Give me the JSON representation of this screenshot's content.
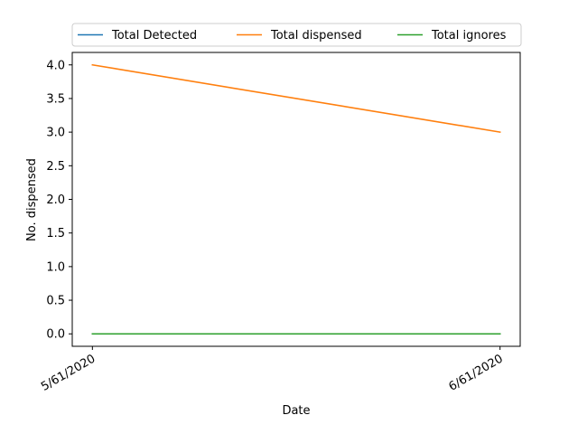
{
  "chart_data": {
    "type": "line",
    "x": [
      "5/61/2020",
      "6/61/2020"
    ],
    "series": [
      {
        "name": "Total Detected",
        "values": [
          0,
          0
        ],
        "color": "#1f77b4"
      },
      {
        "name": "Total dispensed",
        "values": [
          4,
          3
        ],
        "color": "#ff7f0e"
      },
      {
        "name": "Total ignores",
        "values": [
          0,
          0
        ],
        "color": "#2ca02c"
      }
    ],
    "xlabel": "Date",
    "ylabel": "No. dispensed",
    "ylim": [
      -0.185,
      4.185
    ],
    "yticks": [
      "0.0",
      "0.5",
      "1.0",
      "1.5",
      "2.0",
      "2.5",
      "3.0",
      "3.5",
      "4.0"
    ],
    "grid": false,
    "legend_position": "top"
  }
}
